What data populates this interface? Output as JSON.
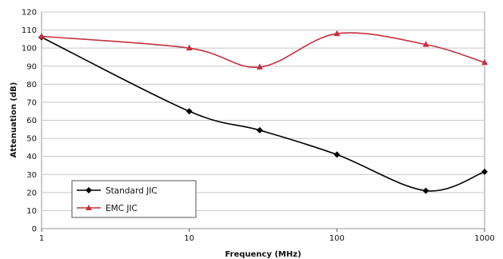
{
  "chart_data": {
    "type": "line",
    "xscale": "log",
    "xlabel": "Frequency (MHz)",
    "ylabel": "Attenuation (dB)",
    "xlim": [
      1,
      1000
    ],
    "ylim": [
      0,
      120
    ],
    "xticks": [
      1,
      10,
      100,
      1000
    ],
    "xtick_labels": [
      "1",
      "10",
      "100",
      "1000"
    ],
    "yticks": [
      0,
      10,
      20,
      30,
      40,
      50,
      60,
      70,
      80,
      90,
      100,
      110,
      120
    ],
    "ytick_labels": [
      "0",
      "10",
      "20",
      "30",
      "40",
      "50",
      "60",
      "70",
      "80",
      "90",
      "100",
      "110",
      "120"
    ],
    "grid": true,
    "legend_position": "bottom-left",
    "series": [
      {
        "name": "Standard JIC",
        "color": "#000000",
        "marker": "diamond",
        "x": [
          1,
          10,
          30,
          100,
          400,
          1000
        ],
        "y": [
          106,
          65,
          54.5,
          41,
          21,
          31.5
        ]
      },
      {
        "name": "EMC JIC",
        "color": "#c4323f",
        "marker": "triangle",
        "x": [
          1,
          10,
          30,
          100,
          400,
          1000
        ],
        "y": [
          106.5,
          100,
          89.5,
          108,
          102,
          92
        ]
      }
    ]
  }
}
